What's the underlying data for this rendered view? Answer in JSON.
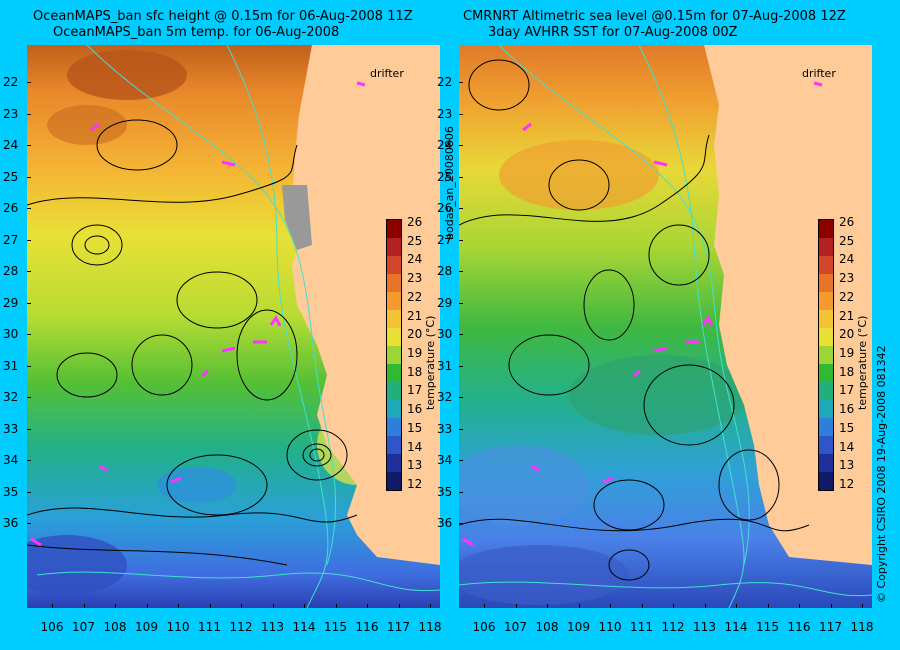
{
  "left_title_1": "OceanMAPS_ban sfc height @ 0.15m for 06-Aug-2008 11Z",
  "left_title_2": "OceanMAPS_ban 5m temp. for 06-Aug-2008",
  "right_title_1": "CMRNRT Altimetric sea level  @0.15m  for 07-Aug-2008 12Z",
  "right_title_2": "3day AVHRR SST for 07-Aug-2008 00Z",
  "drifter_label": "drifter",
  "center_vertical": "bodas_an_20080806",
  "right_vertical": "© Copyright CSIRO 2008    19-Aug-2008 081342",
  "colorbar": {
    "label": "temperature (°C)",
    "ticks": [
      "26",
      "25",
      "24",
      "23",
      "22",
      "21",
      "20",
      "19",
      "18",
      "17",
      "16",
      "15",
      "14",
      "13",
      "12"
    ],
    "colors": [
      "#8b0000",
      "#b22222",
      "#d2452a",
      "#e8742a",
      "#f59a2f",
      "#f5c236",
      "#e8e035",
      "#9bd634",
      "#33b833",
      "#22b07a",
      "#20a8b8",
      "#2f7fd8",
      "#2f55c8",
      "#1f2f98",
      "#101a66"
    ]
  },
  "latitudes": [
    "22",
    "23",
    "24",
    "25",
    "26",
    "27",
    "28",
    "29",
    "30",
    "31",
    "32",
    "33",
    "34",
    "35",
    "36"
  ],
  "longitudes": [
    "106",
    "107",
    "108",
    "109",
    "110",
    "111",
    "112",
    "113",
    "114",
    "115",
    "116",
    "117",
    "118"
  ],
  "colors": {
    "background": "#00ccff",
    "land": "#ffcc99",
    "contour": "#000000",
    "bathymetry": "#40e0d0",
    "drifter": "#ff33ff"
  }
}
